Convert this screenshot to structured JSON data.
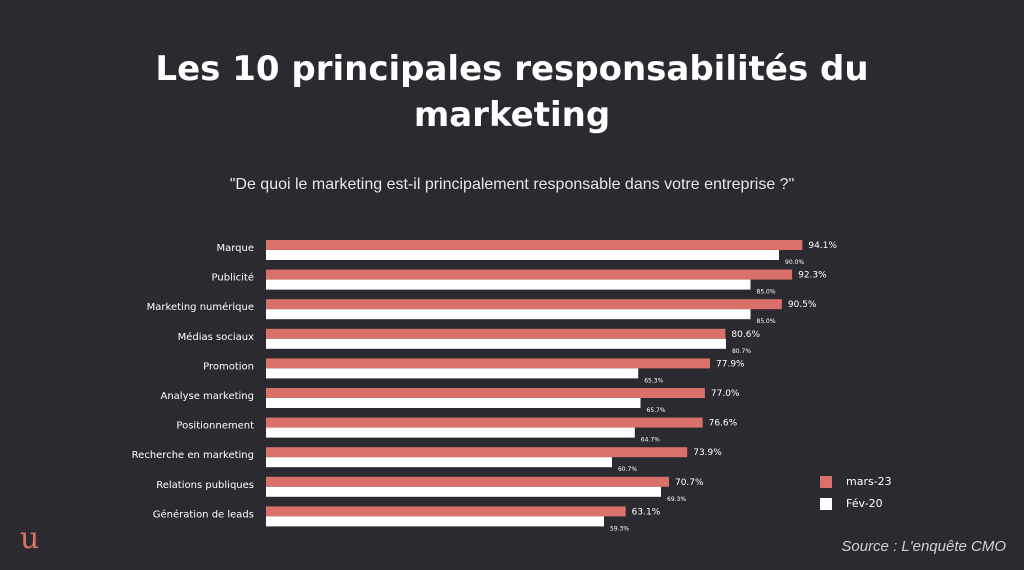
{
  "header": {
    "title_line1": "Les 10 principales responsabilités du",
    "title_line2": "marketing",
    "subtitle": "\"De quoi le marketing est-il principalement responsable dans votre entreprise ?\""
  },
  "footer": {
    "logo": "u",
    "source": "Source : L'enquête CMO"
  },
  "colors": {
    "background": "#2b2a30",
    "series_mars23": "#d9706a",
    "series_fev20": "#ffffff"
  },
  "chart_data": {
    "type": "bar",
    "orientation": "horizontal",
    "title": "Les 10 principales responsabilités du marketing",
    "subtitle": "\"De quoi le marketing est-il principalement responsable dans votre entreprise ?\"",
    "categories": [
      "Marque",
      "Publicité",
      "Marketing numérique",
      "Médias sociaux",
      "Promotion",
      "Analyse marketing",
      "Positionnement",
      "Recherche en marketing",
      "Relations publiques",
      "Génération de leads"
    ],
    "series": [
      {
        "name": "mars-23",
        "color": "#d9706a",
        "values": [
          94.1,
          92.3,
          90.5,
          80.6,
          77.9,
          77.0,
          76.6,
          73.9,
          70.7,
          63.1
        ],
        "labels": [
          "94.1%",
          "92.3%",
          "90.5%",
          "80.6%",
          "77.9%",
          "77.0%",
          "76.6%",
          "73.9%",
          "70.7%",
          "63.1%"
        ]
      },
      {
        "name": "Fév-20",
        "color": "#ffffff",
        "values": [
          90.0,
          85.0,
          85.0,
          80.7,
          65.3,
          65.7,
          64.7,
          60.7,
          69.3,
          59.3
        ],
        "labels": [
          "90.0%",
          "85.0%",
          "85.0%",
          "80.7%",
          "65.3%",
          "65.7%",
          "64.7%",
          "60.7%",
          "69.3%",
          "59.3%"
        ]
      }
    ],
    "legend": "right",
    "grid": false,
    "xlim": [
      0,
      100
    ]
  }
}
